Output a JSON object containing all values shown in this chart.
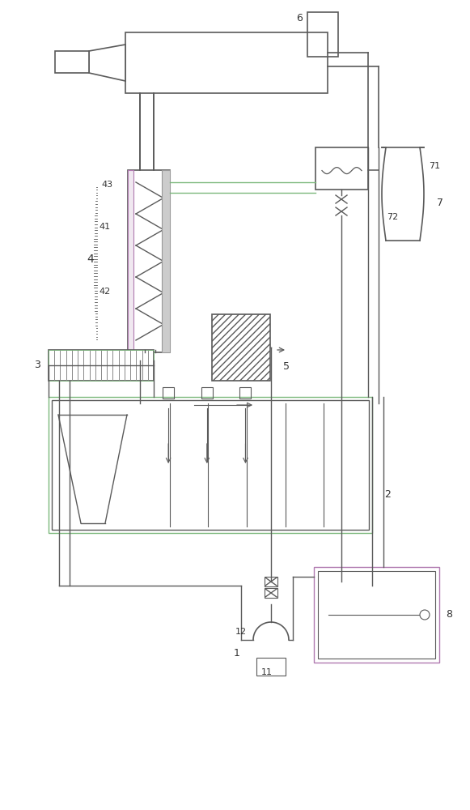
{
  "bg_color": "#ffffff",
  "line_color": "#5a5a5a",
  "green_color": "#7cb87c",
  "purple_color": "#b07ab0",
  "figsize": [
    5.81,
    10.0
  ],
  "dpi": 100
}
